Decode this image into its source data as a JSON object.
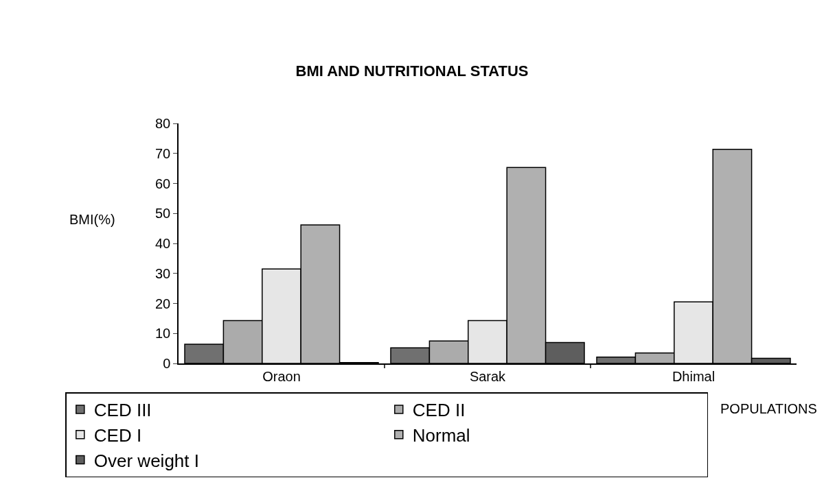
{
  "chart_data": {
    "type": "bar",
    "title": "BMI AND NUTRITIONAL STATUS",
    "xlabel": "POPULATIONS",
    "ylabel": "BMI(%)",
    "categories": [
      "Oraon",
      "Sarak",
      "Dhimal"
    ],
    "series": [
      {
        "name": "CED III",
        "color": "#707070",
        "values": [
          6.4,
          5.2,
          2.1
        ]
      },
      {
        "name": "CED II",
        "color": "#ababab",
        "values": [
          14.3,
          7.5,
          3.5
        ]
      },
      {
        "name": "CED I",
        "color": "#e6e6e6",
        "values": [
          31.5,
          14.3,
          20.5
        ]
      },
      {
        "name": "Normal",
        "color": "#b0b0b0",
        "values": [
          46.2,
          65.3,
          71.4
        ]
      },
      {
        "name": "Over weight I",
        "color": "#5e5e5e",
        "values": [
          0.3,
          7.0,
          1.7
        ]
      }
    ],
    "ylim": [
      0,
      80
    ],
    "yticks": [
      0,
      10,
      20,
      30,
      40,
      50,
      60,
      70,
      80
    ],
    "legend": "bottom left"
  }
}
